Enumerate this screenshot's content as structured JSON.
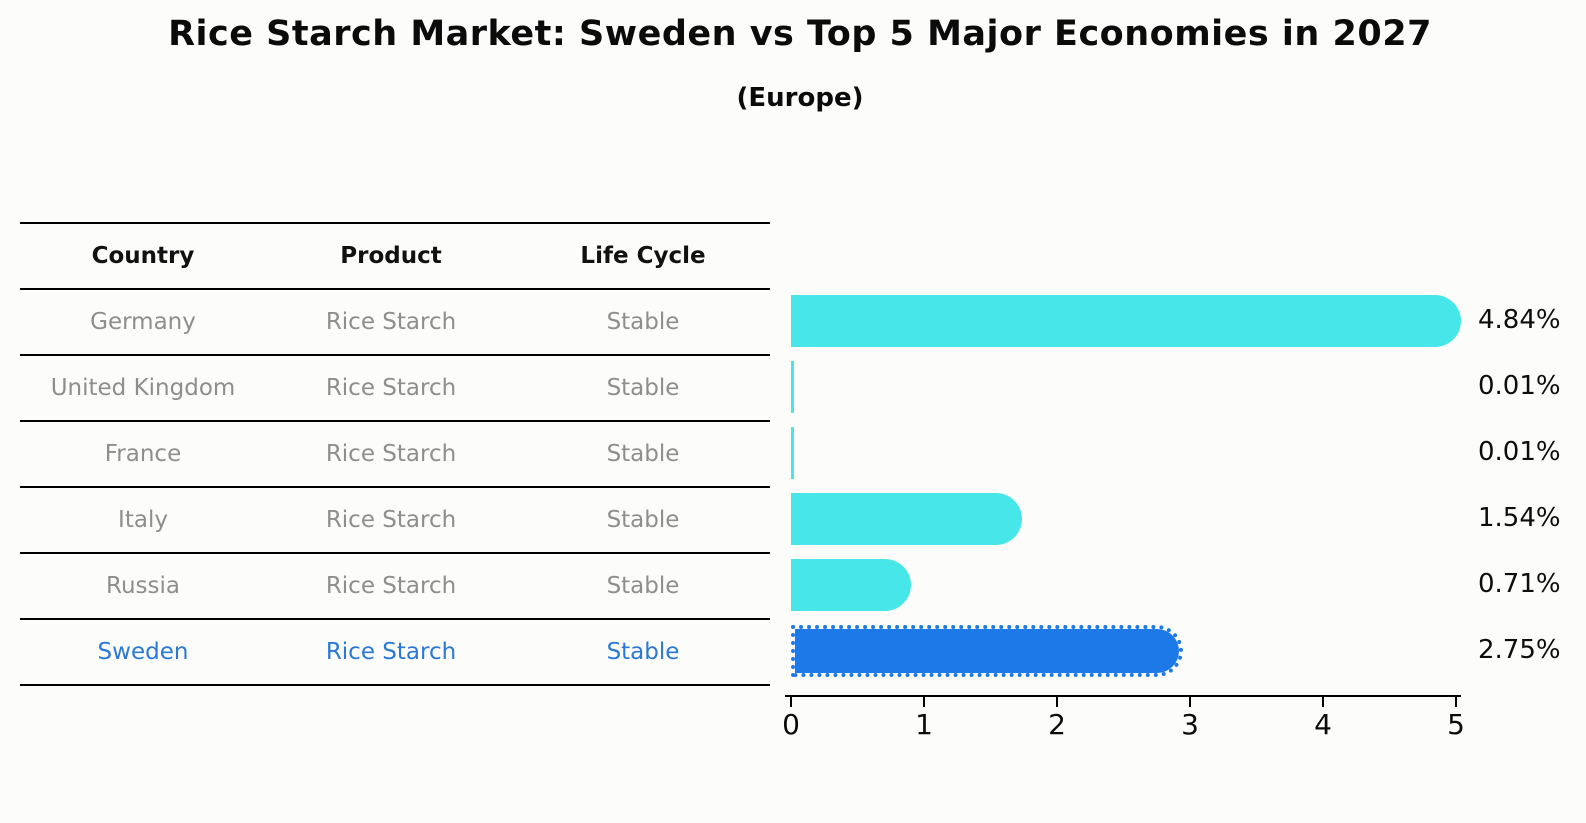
{
  "title": "Rice Starch Market: Sweden vs Top 5 Major Economies in 2027",
  "subtitle": "(Europe)",
  "table": {
    "headers": [
      "Country",
      "Product",
      "Life Cycle"
    ],
    "rows": [
      {
        "country": "Germany",
        "product": "Rice Starch",
        "life_cycle": "Stable",
        "highlight": false
      },
      {
        "country": "United Kingdom",
        "product": "Rice Starch",
        "life_cycle": "Stable",
        "highlight": false
      },
      {
        "country": "France",
        "product": "Rice Starch",
        "life_cycle": "Stable",
        "highlight": false
      },
      {
        "country": "Italy",
        "product": "Rice Starch",
        "life_cycle": "Stable",
        "highlight": false
      },
      {
        "country": "Russia",
        "product": "Rice Starch",
        "life_cycle": "Stable",
        "highlight": false
      },
      {
        "country": "Sweden",
        "product": "Rice Starch",
        "life_cycle": "Stable",
        "highlight": true
      }
    ]
  },
  "chart_data": {
    "type": "bar",
    "orientation": "horizontal",
    "categories": [
      "Germany",
      "United Kingdom",
      "France",
      "Italy",
      "Russia",
      "Sweden"
    ],
    "values": [
      4.84,
      0.01,
      0.01,
      1.54,
      0.71,
      2.75
    ],
    "labels": [
      "4.84%",
      "0.01%",
      "0.01%",
      "1.54%",
      "0.71%",
      "2.75%"
    ],
    "xlim": [
      0,
      5
    ],
    "xticks": [
      0,
      1,
      2,
      3,
      4,
      5
    ],
    "grid": false,
    "legend": false,
    "bar_color": "#47e6e8",
    "highlight_color": "#1e79e8",
    "highlight_index": 5,
    "highlight_text_color": "#2b79d4"
  }
}
